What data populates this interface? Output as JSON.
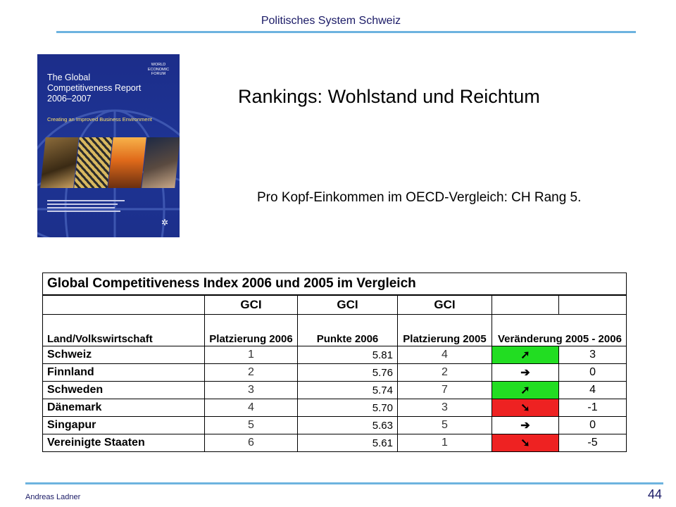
{
  "header": {
    "title": "Politisches System Schweiz"
  },
  "slide": {
    "title": "Rankings: Wohlstand und Reichtum",
    "body": "Pro Kopf-Einkommen im OECD-Vergleich: CH Rang 5."
  },
  "cover": {
    "title_line1": "The Global",
    "title_line2": "Competitiveness Report",
    "title_line3": "2006–2007",
    "subtitle": "Creating an Improved Business Environment",
    "wef_logo": "WORLD ECONOMIC FORUM"
  },
  "table": {
    "title": "Global Competitiveness Index 2006 und 2005 im Vergleich",
    "group_labels": [
      "GCI",
      "GCI",
      "GCI"
    ],
    "headers": {
      "country": "Land/Volkswirtschaft",
      "rank_2006": "Platzierung 2006",
      "score_2006": "Punkte 2006",
      "rank_2005": "Platzierung 2005",
      "change": "Veränderung 2005 - 2006"
    },
    "rows": [
      {
        "country": "Schweiz",
        "rank_2006": "1",
        "score_2006": "5.81",
        "rank_2005": "4",
        "arrow": "➚",
        "change": "3"
      },
      {
        "country": "Finnland",
        "rank_2006": "2",
        "score_2006": "5.76",
        "rank_2005": "2",
        "arrow": "➔",
        "change": "0"
      },
      {
        "country": "Schweden",
        "rank_2006": "3",
        "score_2006": "5.74",
        "rank_2005": "7",
        "arrow": "➚",
        "change": "4"
      },
      {
        "country": "Dänemark",
        "rank_2006": "4",
        "score_2006": "5.70",
        "rank_2005": "3",
        "arrow": "➘",
        "change": "-1"
      },
      {
        "country": "Singapur",
        "rank_2006": "5",
        "score_2006": "5.63",
        "rank_2005": "5",
        "arrow": "➔",
        "change": "0"
      },
      {
        "country": "Vereinigte Staaten",
        "rank_2006": "6",
        "score_2006": "5.61",
        "rank_2005": "1",
        "arrow": "➘",
        "change": "-5"
      }
    ],
    "colors": {
      "up": "#22dd22",
      "down": "#ee2222",
      "same": "#ffffff"
    }
  },
  "footer": {
    "author": "Andreas Ladner",
    "page_number": "44"
  }
}
